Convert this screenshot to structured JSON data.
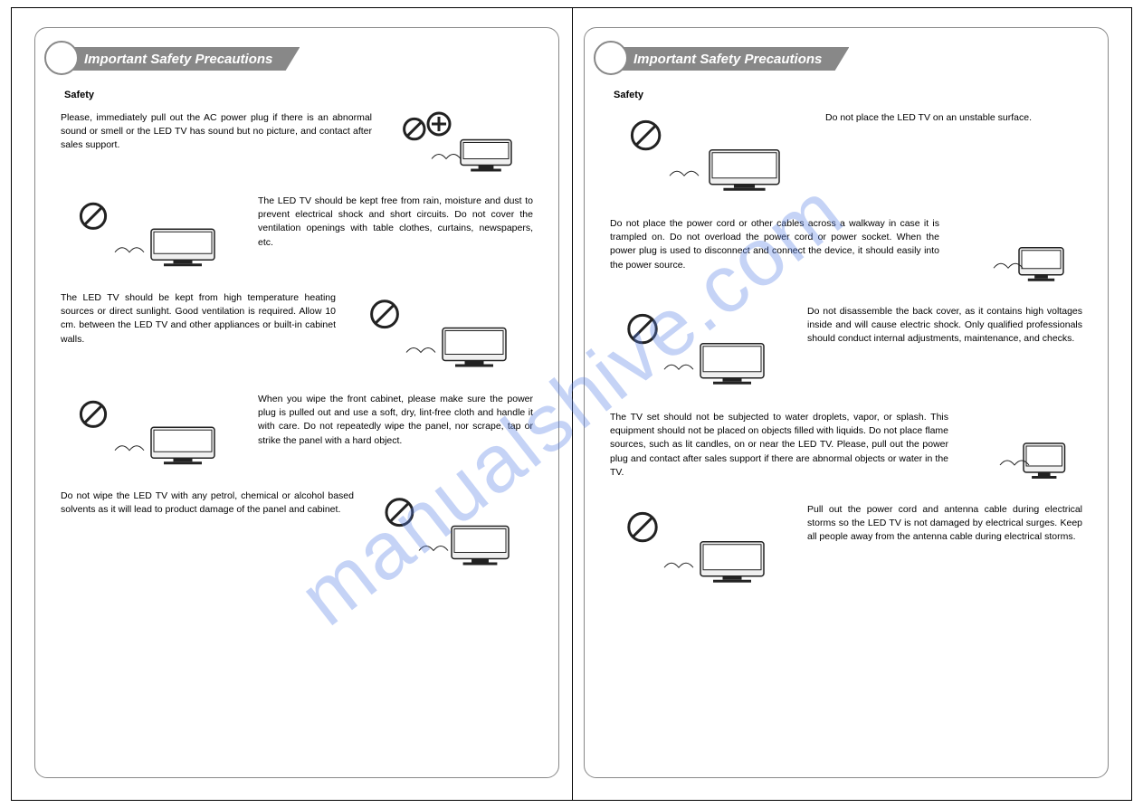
{
  "colors": {
    "border": "#000000",
    "header_bg": "#888888",
    "header_text": "#ffffff",
    "text": "#000000",
    "watermark": "rgba(90,130,230,0.35)",
    "illus_stroke": "#222222",
    "illus_fill": "#f0f0f0"
  },
  "watermark_text": "manualshive.com",
  "left": {
    "header": "Important Safety Precautions",
    "subtitle": "Safety",
    "items": [
      {
        "side": "img-right",
        "illus_w": 160,
        "illus_h": 70,
        "text": "Please, immediately pull out the AC power plug if there is an abnormal sound or smell or the LED TV has sound but no picture, and contact after sales support."
      },
      {
        "side": "img-left",
        "illus_w": 200,
        "illus_h": 85,
        "text": "The LED TV should be kept free from rain, moisture and dust to prevent electrical shock and short circuits. Do not cover the ventilation openings with table clothes, curtains, newspapers, etc."
      },
      {
        "side": "img-right",
        "illus_w": 200,
        "illus_h": 90,
        "text": "The LED TV should be kept from high temperature heating sources or direct sunlight. Good ventilation is required. Allow 10 cm. between the LED TV and other appliances or built-in cabinet walls."
      },
      {
        "side": "img-left",
        "illus_w": 200,
        "illus_h": 85,
        "text": "When you wipe the front cabinet, please make sure the power plug is pulled out and use a soft, dry, lint-free cloth and handle it with care. Do not repeatedly wipe the panel, nor scrape, tap or strike the panel with a hard object."
      },
      {
        "side": "img-right",
        "illus_w": 180,
        "illus_h": 90,
        "text": "Do not wipe the LED TV with any petrol, chemical or alcohol based solvents as it will lead to product damage of the panel and cabinet."
      }
    ]
  },
  "right": {
    "header": "Important Safety Precautions",
    "subtitle": "Safety",
    "items": [
      {
        "side": "img-left",
        "illus_w": 220,
        "illus_h": 95,
        "text": "Do not place the LED TV on an unstable surface."
      },
      {
        "side": "img-right",
        "illus_w": 140,
        "illus_h": 75,
        "text": "Do not place the power cord or other cables across a walkway in case it is trampled on. Do not overload the power cord or power socket. When the power plug is used to disconnect and connect the device, it should easily into the power source."
      },
      {
        "side": "img-left",
        "illus_w": 200,
        "illus_h": 95,
        "text": "Do not disassemble the back cover, as it contains high voltages inside and will cause electric shock. Only qualified professionals should conduct internal adjustments, maintenance, and checks."
      },
      {
        "side": "img-right",
        "illus_w": 130,
        "illus_h": 80,
        "text": "The TV set should not be subjected to water droplets, vapor, or splash.  This equipment should not be placed on objects filled with liquids. Do not place flame sources, such as lit candles, on or near the LED TV. Please, pull out the power plug and contact after sales support if there are abnormal objects or water in the TV."
      },
      {
        "side": "img-left",
        "illus_w": 200,
        "illus_h": 95,
        "text": "Pull out the power cord and antenna cable during electrical storms so the LED TV is not damaged by electrical surges. Keep all people away from the antenna cable during electrical storms."
      }
    ]
  }
}
